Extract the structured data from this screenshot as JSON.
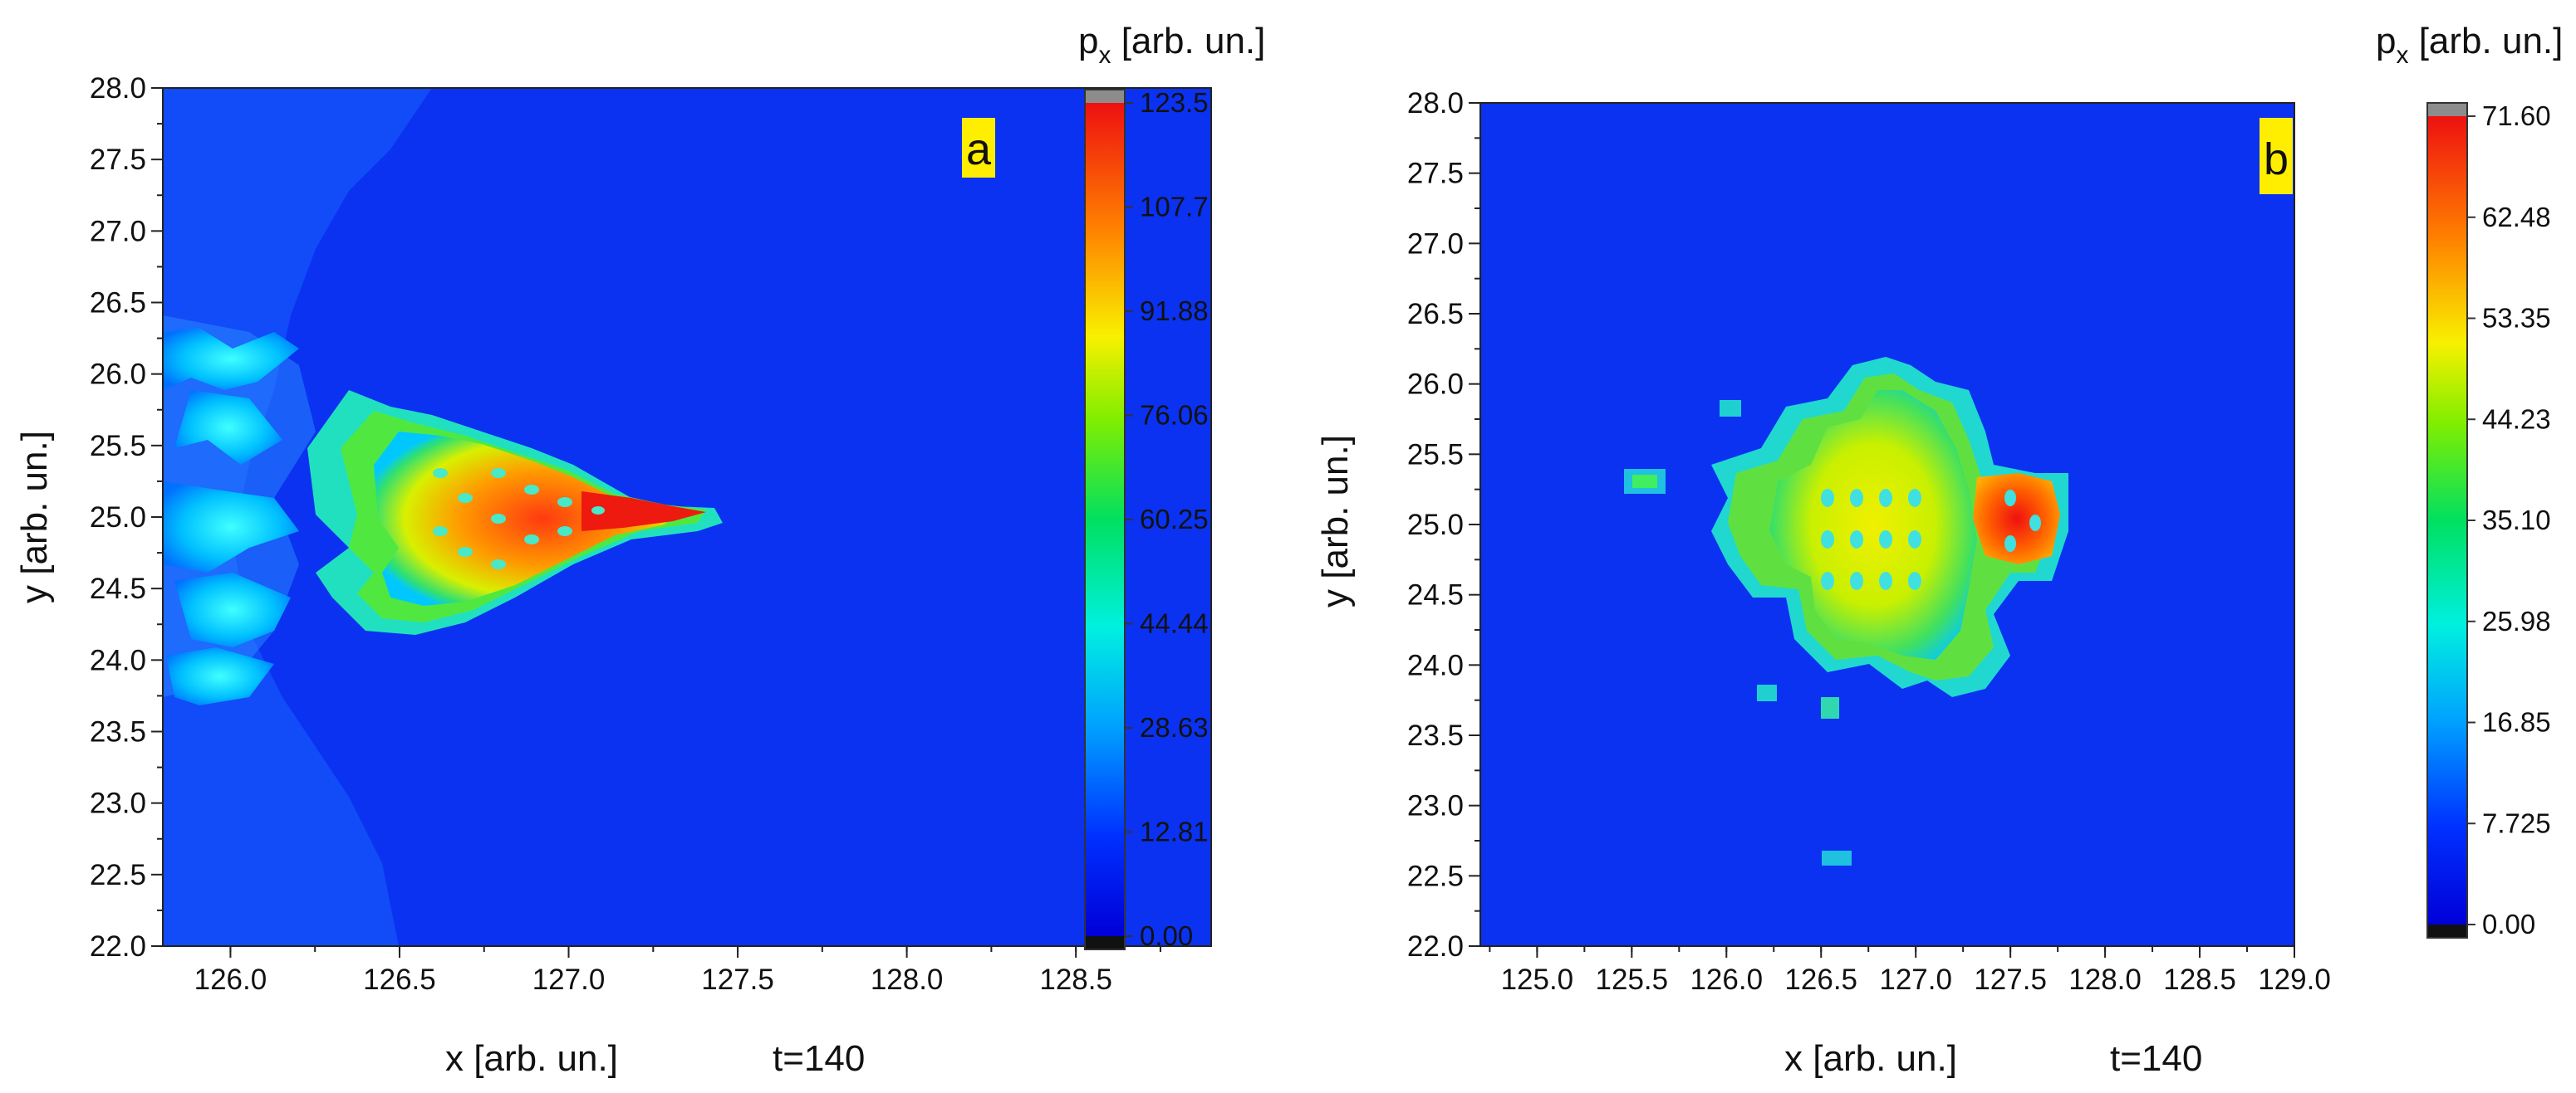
{
  "chart_data": [
    {
      "type": "heatmap",
      "panel_label": "a",
      "xlabel": "x [arb. un.]",
      "ylabel": "y [arb. un.]",
      "xlim": [
        125.8,
        128.9
      ],
      "ylim": [
        22.0,
        28.0
      ],
      "x_ticks": [
        "126.0",
        "126.5",
        "127.0",
        "127.5",
        "128.0",
        "128.5"
      ],
      "y_ticks": [
        "22.0",
        "22.5",
        "23.0",
        "23.5",
        "24.0",
        "24.5",
        "25.0",
        "25.5",
        "26.0",
        "26.5",
        "27.0",
        "27.5",
        "28.0"
      ],
      "annotation": "t=140",
      "colorbar": {
        "title": "p",
        "title_subscript": "x",
        "title_suffix": " [arb. un.]",
        "min": 0.0,
        "max": 123.5,
        "tick_labels": [
          "0.00",
          "12.81",
          "28.63",
          "44.44",
          "60.25",
          "76.06",
          "91.88",
          "107.7",
          "123.5"
        ]
      },
      "features": [
        {
          "kind": "background",
          "x": 127.3,
          "y": 25.0,
          "value": 9
        },
        {
          "kind": "bow-region",
          "x": 125.9,
          "y": 25.0,
          "value": 15
        },
        {
          "kind": "jet-body",
          "x": 127.1,
          "y": 25.0,
          "value": 100
        },
        {
          "kind": "jet-tip",
          "x": 127.7,
          "y": 25.0,
          "value": 118
        },
        {
          "kind": "left-blobs",
          "x": 126.0,
          "y": 25.5,
          "value": 30
        }
      ]
    },
    {
      "type": "heatmap",
      "panel_label": "b",
      "xlabel": "x [arb. un.]",
      "ylabel": "y [arb. un.]",
      "xlim": [
        124.7,
        129.0
      ],
      "ylim": [
        22.0,
        28.0
      ],
      "x_ticks": [
        "125.0",
        "125.5",
        "126.0",
        "126.5",
        "127.0",
        "127.5",
        "128.0",
        "128.5",
        "129.0"
      ],
      "y_ticks": [
        "22.0",
        "22.5",
        "23.0",
        "23.5",
        "24.0",
        "24.5",
        "25.0",
        "25.5",
        "26.0",
        "26.5",
        "27.0",
        "27.5",
        "28.0"
      ],
      "annotation": "t=140",
      "colorbar": {
        "title": "p",
        "title_subscript": "x",
        "title_suffix": " [arb. un.]",
        "min": 0.0,
        "max": 71.6,
        "tick_labels": [
          "0.00",
          "7.725",
          "16.85",
          "25.98",
          "35.10",
          "44.23",
          "53.35",
          "62.48",
          "71.60"
        ]
      },
      "features": [
        {
          "kind": "background",
          "x": 127.0,
          "y": 25.0,
          "value": 6
        },
        {
          "kind": "central-cluster",
          "x": 127.0,
          "y": 24.9,
          "value": 48
        },
        {
          "kind": "right-hotspot",
          "x": 127.55,
          "y": 25.0,
          "value": 68
        },
        {
          "kind": "small-blob",
          "x": 125.5,
          "y": 25.3,
          "value": 20
        },
        {
          "kind": "small-blob",
          "x": 126.6,
          "y": 22.65,
          "value": 18
        }
      ]
    }
  ]
}
